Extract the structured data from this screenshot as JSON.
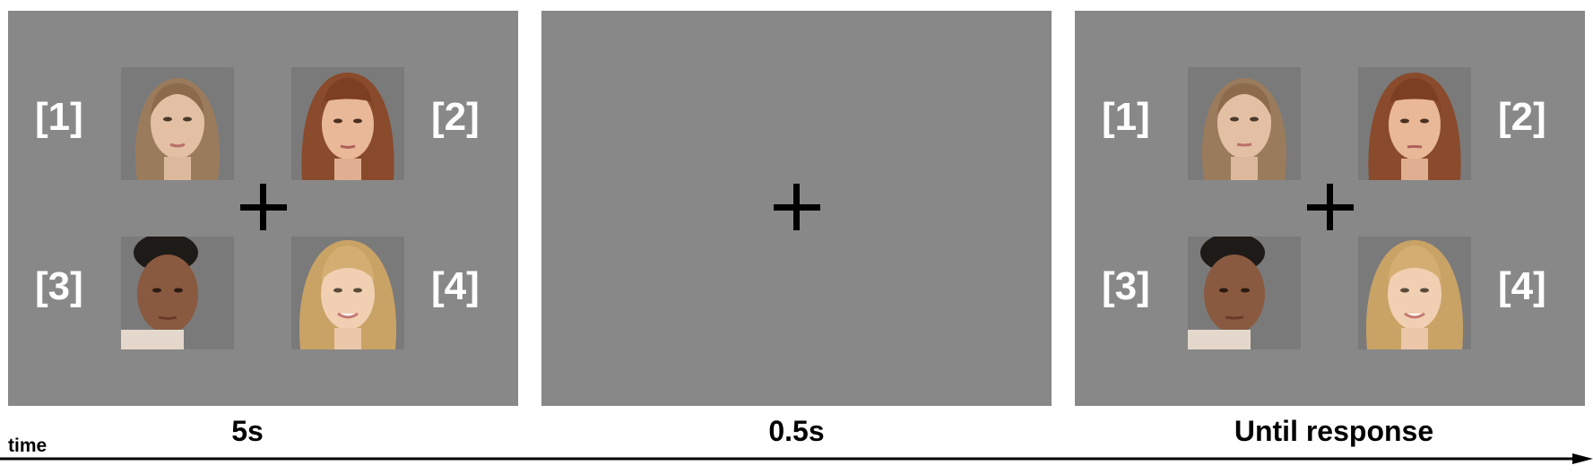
{
  "panels": [
    {
      "labels": [
        "[1]",
        "[2]",
        "[3]",
        "[4]"
      ],
      "duration": "5s"
    },
    {
      "labels": [],
      "duration": "0.5s"
    },
    {
      "labels": [
        "[1]",
        "[2]",
        "[3]",
        "[4]"
      ],
      "duration": "Until response"
    }
  ],
  "time_label": "time",
  "colors": {
    "panel_bg": "#888888",
    "label": "#ffffff",
    "fixation": "#000000"
  }
}
